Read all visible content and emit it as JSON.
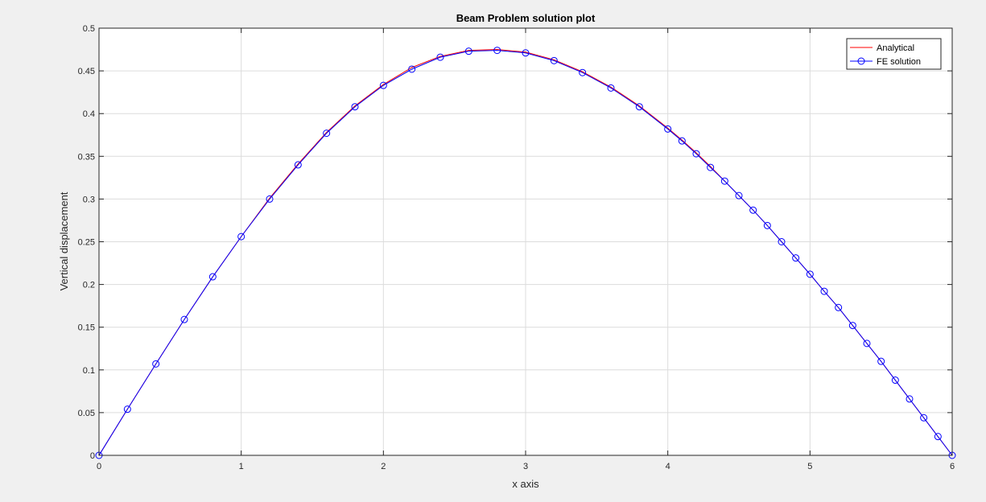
{
  "figure": {
    "background": "#f0f0f0"
  },
  "chart_data": {
    "type": "line",
    "title": "Beam Problem solution plot",
    "xlabel": "x axis",
    "ylabel": "Vertical displacement",
    "xlim": [
      0,
      6
    ],
    "ylim": [
      0,
      0.5
    ],
    "xticks": [
      0,
      1,
      2,
      3,
      4,
      5,
      6
    ],
    "xtick_labels": [
      "0",
      "1",
      "2",
      "3",
      "4",
      "5",
      "6"
    ],
    "yticks": [
      0,
      0.05,
      0.1,
      0.15,
      0.2,
      0.25,
      0.3,
      0.35,
      0.4,
      0.45,
      0.5
    ],
    "ytick_labels": [
      "0",
      "0.05",
      "0.1",
      "0.15",
      "0.2",
      "0.25",
      "0.3",
      "0.35",
      "0.4",
      "0.45",
      "0.5"
    ],
    "grid": true,
    "legend_position": "top-right",
    "series": [
      {
        "name": "Analytical",
        "color": "#ff0000",
        "marker": "none",
        "x": [
          0,
          0.2,
          0.4,
          0.6,
          0.8,
          1.0,
          1.2,
          1.4,
          1.6,
          1.8,
          2.0,
          2.2,
          2.4,
          2.6,
          2.8,
          3.0,
          3.2,
          3.4,
          3.6,
          3.8,
          4.0,
          4.1,
          4.2,
          4.3,
          4.4,
          4.5,
          4.6,
          4.7,
          4.8,
          4.9,
          5.0,
          5.1,
          5.2,
          5.3,
          5.4,
          5.5,
          5.6,
          5.7,
          5.8,
          5.9,
          6.0
        ],
        "y": [
          0,
          0.054,
          0.107,
          0.159,
          0.209,
          0.256,
          0.301,
          0.341,
          0.378,
          0.409,
          0.434,
          0.454,
          0.467,
          0.474,
          0.475,
          0.472,
          0.463,
          0.449,
          0.431,
          0.409,
          0.383,
          0.369,
          0.354,
          0.338,
          0.321,
          0.304,
          0.287,
          0.269,
          0.25,
          0.231,
          0.212,
          0.192,
          0.173,
          0.152,
          0.131,
          0.11,
          0.088,
          0.066,
          0.044,
          0.022,
          0
        ]
      },
      {
        "name": "FE solution",
        "color": "#0000ff",
        "marker": "circle",
        "x": [
          0,
          0.2,
          0.4,
          0.6,
          0.8,
          1.0,
          1.2,
          1.4,
          1.6,
          1.8,
          2.0,
          2.2,
          2.4,
          2.6,
          2.8,
          3.0,
          3.2,
          3.4,
          3.6,
          3.8,
          4.0,
          4.1,
          4.2,
          4.3,
          4.4,
          4.5,
          4.6,
          4.7,
          4.8,
          4.9,
          5.0,
          5.1,
          5.2,
          5.3,
          5.4,
          5.5,
          5.6,
          5.7,
          5.8,
          5.9,
          6.0
        ],
        "y": [
          0,
          0.054,
          0.107,
          0.159,
          0.209,
          0.256,
          0.3,
          0.34,
          0.377,
          0.408,
          0.433,
          0.452,
          0.466,
          0.473,
          0.474,
          0.471,
          0.462,
          0.448,
          0.43,
          0.408,
          0.382,
          0.368,
          0.353,
          0.337,
          0.321,
          0.304,
          0.287,
          0.269,
          0.25,
          0.231,
          0.212,
          0.192,
          0.173,
          0.152,
          0.131,
          0.11,
          0.088,
          0.066,
          0.044,
          0.022,
          0
        ]
      }
    ]
  }
}
